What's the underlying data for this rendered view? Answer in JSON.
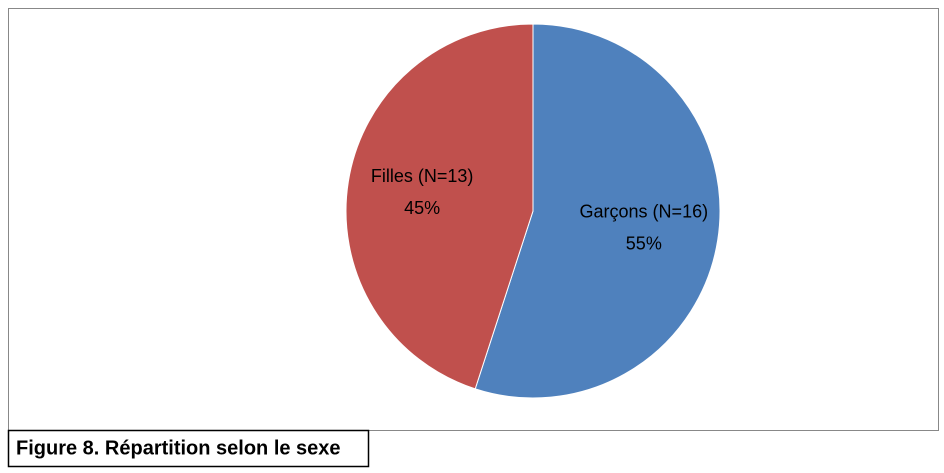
{
  "chart_data": {
    "type": "pie",
    "title": "Figure 8. Répartition selon le sexe",
    "categories": [
      "Garçons (N=16)",
      "Filles (N=13)"
    ],
    "values": [
      55,
      45
    ],
    "value_labels": [
      "55%",
      "45%"
    ],
    "colors": [
      "#4f81bd",
      "#c0504d"
    ]
  }
}
